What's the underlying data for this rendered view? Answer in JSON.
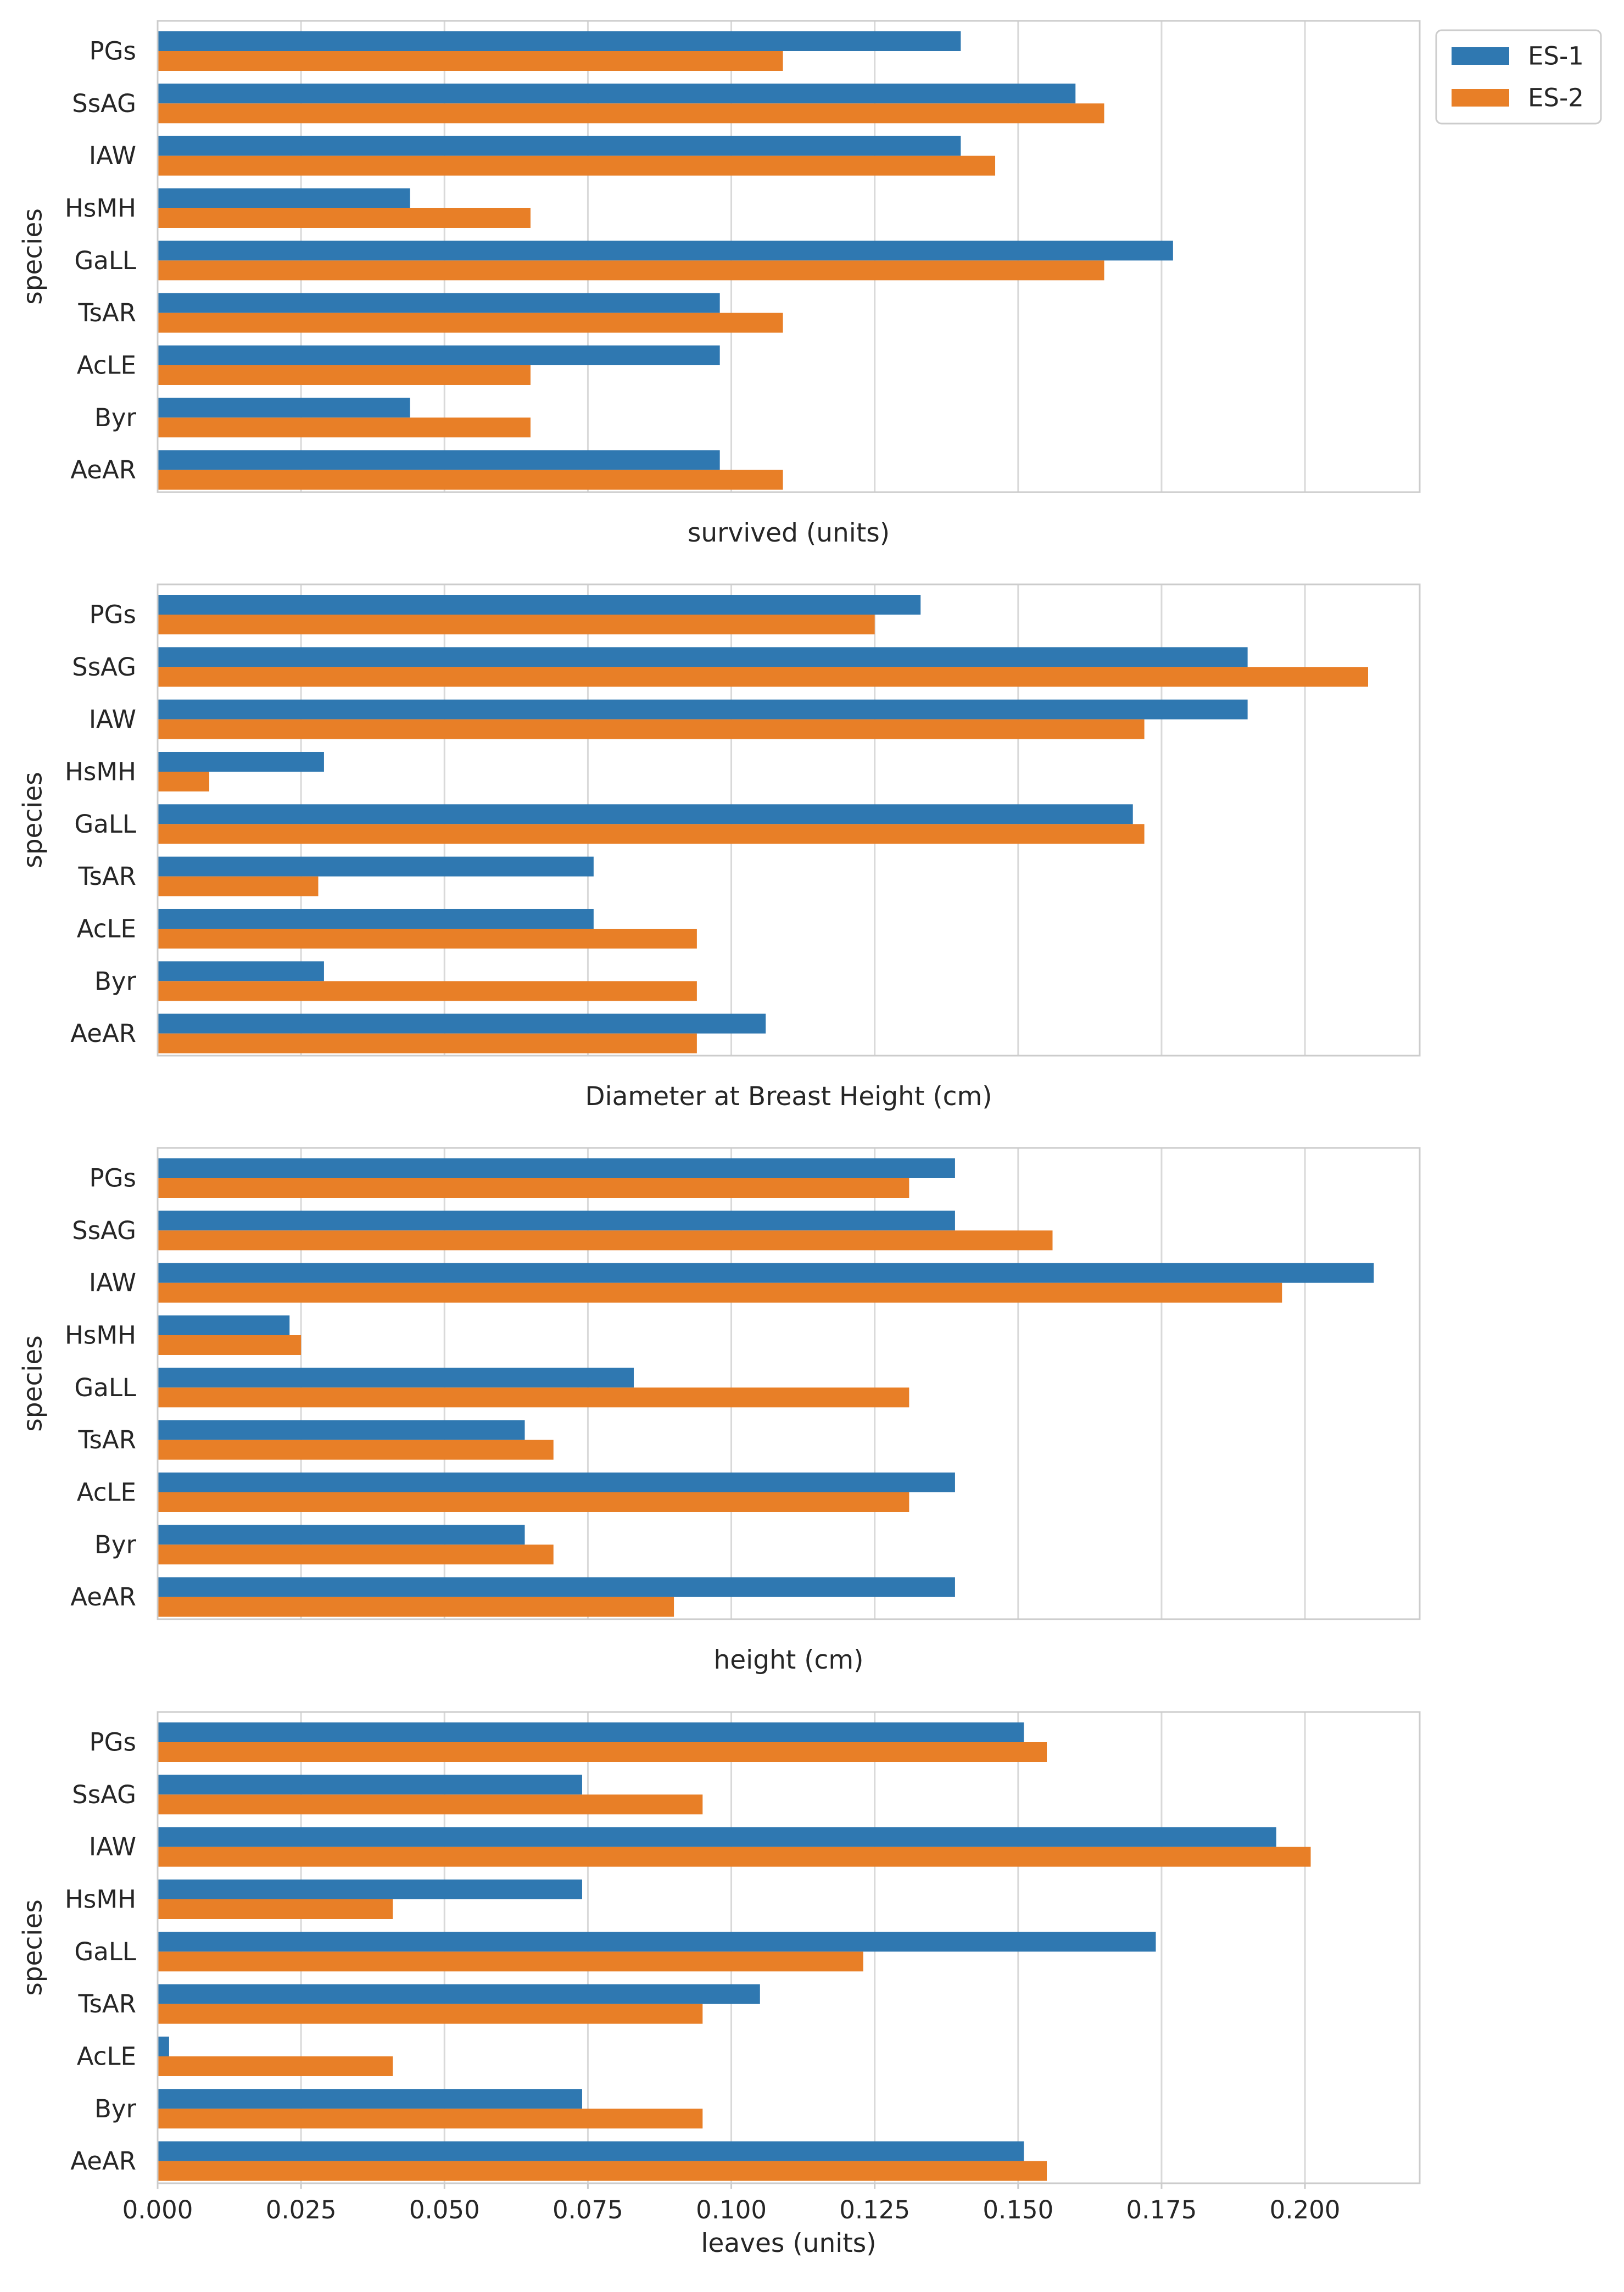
{
  "colors": {
    "ES-1": "#2F78B1",
    "ES-2": "#E87F27",
    "grid": "#d9d9d9",
    "frame": "#cccccc",
    "text": "#262626"
  },
  "legend": {
    "placement": "top-right",
    "entries": [
      "ES-1",
      "ES-2"
    ]
  },
  "chart_data": [
    {
      "type": "bar",
      "orientation": "horizontal",
      "ylabel": "species",
      "xlabel": "survived (units)",
      "categories": [
        "PGs",
        "SsAG",
        "IAW",
        "HsMH",
        "GaLL",
        "TsAR",
        "AcLE",
        "Byr",
        "AeAR"
      ],
      "series": [
        {
          "name": "ES-1",
          "values": [
            0.14,
            0.16,
            0.14,
            0.044,
            0.177,
            0.098,
            0.098,
            0.044,
            0.098
          ]
        },
        {
          "name": "ES-2",
          "values": [
            0.109,
            0.165,
            0.146,
            0.065,
            0.165,
            0.109,
            0.065,
            0.065,
            0.109
          ]
        }
      ],
      "xlim": [
        0,
        0.22
      ],
      "grid": true,
      "show_xtick_labels": false
    },
    {
      "type": "bar",
      "orientation": "horizontal",
      "ylabel": "species",
      "xlabel": "Diameter at Breast Height (cm)",
      "categories": [
        "PGs",
        "SsAG",
        "IAW",
        "HsMH",
        "GaLL",
        "TsAR",
        "AcLE",
        "Byr",
        "AeAR"
      ],
      "series": [
        {
          "name": "ES-1",
          "values": [
            0.133,
            0.19,
            0.19,
            0.029,
            0.17,
            0.076,
            0.076,
            0.029,
            0.106
          ]
        },
        {
          "name": "ES-2",
          "values": [
            0.125,
            0.211,
            0.172,
            0.009,
            0.172,
            0.028,
            0.094,
            0.094,
            0.094
          ]
        }
      ],
      "xlim": [
        0,
        0.22
      ],
      "grid": true,
      "show_xtick_labels": false
    },
    {
      "type": "bar",
      "orientation": "horizontal",
      "ylabel": "species",
      "xlabel": "height (cm)",
      "categories": [
        "PGs",
        "SsAG",
        "IAW",
        "HsMH",
        "GaLL",
        "TsAR",
        "AcLE",
        "Byr",
        "AeAR"
      ],
      "series": [
        {
          "name": "ES-1",
          "values": [
            0.139,
            0.139,
            0.212,
            0.023,
            0.083,
            0.064,
            0.139,
            0.064,
            0.139
          ]
        },
        {
          "name": "ES-2",
          "values": [
            0.131,
            0.156,
            0.196,
            0.025,
            0.131,
            0.069,
            0.131,
            0.069,
            0.09
          ]
        }
      ],
      "xlim": [
        0,
        0.22
      ],
      "grid": true,
      "show_xtick_labels": false
    },
    {
      "type": "bar",
      "orientation": "horizontal",
      "ylabel": "species",
      "xlabel": "leaves (units)",
      "categories": [
        "PGs",
        "SsAG",
        "IAW",
        "HsMH",
        "GaLL",
        "TsAR",
        "AcLE",
        "Byr",
        "AeAR"
      ],
      "series": [
        {
          "name": "ES-1",
          "values": [
            0.151,
            0.074,
            0.195,
            0.074,
            0.174,
            0.105,
            0.002,
            0.074,
            0.151
          ]
        },
        {
          "name": "ES-2",
          "values": [
            0.155,
            0.095,
            0.201,
            0.041,
            0.123,
            0.095,
            0.041,
            0.095,
            0.155
          ]
        }
      ],
      "xlim": [
        0,
        0.22
      ],
      "grid": true,
      "show_xtick_labels": true,
      "xticks": [
        0,
        0.025,
        0.05,
        0.075,
        0.1,
        0.125,
        0.15,
        0.175,
        0.2
      ],
      "xtick_labels": [
        "0.000",
        "0.025",
        "0.050",
        "0.075",
        "0.100",
        "0.125",
        "0.150",
        "0.175",
        "0.200"
      ]
    }
  ]
}
